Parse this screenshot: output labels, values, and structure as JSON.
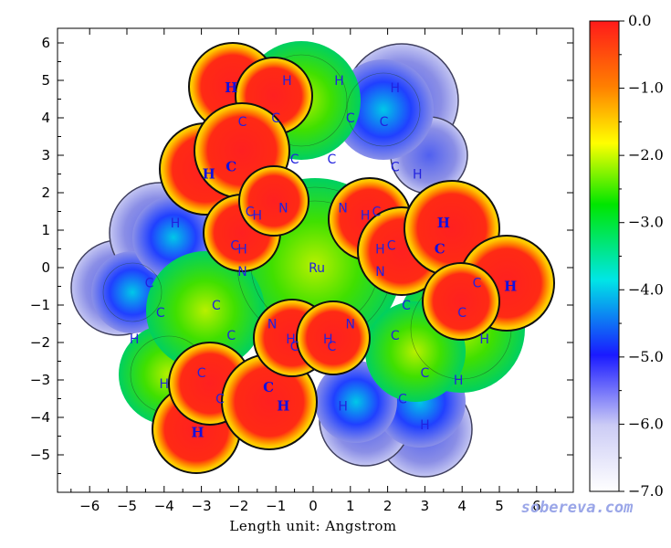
{
  "chart_data": {
    "type": "heatmap",
    "subtype": "molecular surface electrostatic potential map",
    "xlabel": "Length unit: Angstrom",
    "ylabel": "",
    "xlim": [
      -6.7,
      6.7
    ],
    "ylim": [
      -5.9,
      6.4
    ],
    "x_ticks": [
      -6,
      -5,
      -4,
      -3,
      -2,
      -1,
      0,
      1,
      2,
      3,
      4,
      5,
      6
    ],
    "y_ticks": [
      6,
      5,
      4,
      3,
      2,
      1,
      0,
      -1,
      -2,
      -3,
      -4,
      -5
    ],
    "x_tick_labels": [
      "−6",
      "−5",
      "−4",
      "−3",
      "−2",
      "−1",
      "0",
      "1",
      "2",
      "3",
      "4",
      "5",
      "6"
    ],
    "y_tick_labels": [
      "6",
      "5",
      "4",
      "3",
      "2",
      "1",
      "0",
      "−1",
      "−2",
      "−3",
      "−4",
      "−5"
    ],
    "colorbar": {
      "range": [
        -7.0,
        0.0
      ],
      "ticks": [
        0.0,
        -1.0,
        -2.0,
        -3.0,
        -4.0,
        -5.0,
        -6.0,
        -7.0
      ],
      "tick_labels": [
        "0.0",
        "−1.0",
        "−2.0",
        "−3.0",
        "−4.0",
        "−5.0",
        "−6.0",
        "−7.0"
      ],
      "colors_top_to_bottom": [
        "#ff1a1a",
        "#ff8000",
        "#ffff00",
        "#00e600",
        "#00e6e6",
        "#1a1aff",
        "#ccccf5",
        "#ffffff"
      ]
    },
    "grid": false,
    "atoms": [
      {
        "label": "Ru",
        "x": 0.1,
        "y": 0.0,
        "bold": false
      },
      {
        "label": "N",
        "x": -0.8,
        "y": 1.6,
        "bold": false
      },
      {
        "label": "N",
        "x": -1.9,
        "y": -0.1,
        "bold": false
      },
      {
        "label": "C",
        "x": -1.7,
        "y": 1.5,
        "bold": false
      },
      {
        "label": "H",
        "x": -1.5,
        "y": 1.4,
        "bold": false
      },
      {
        "label": "C",
        "x": -2.1,
        "y": 0.6,
        "bold": false
      },
      {
        "label": "H",
        "x": -1.9,
        "y": 0.5,
        "bold": false
      },
      {
        "label": "C",
        "x": -2.2,
        "y": 2.7,
        "bold": true
      },
      {
        "label": "H",
        "x": -2.8,
        "y": 2.5,
        "bold": true
      },
      {
        "label": "C",
        "x": -0.5,
        "y": 2.9,
        "bold": false
      },
      {
        "label": "C",
        "x": -1.9,
        "y": 3.9,
        "bold": false
      },
      {
        "label": "C",
        "x": -1.0,
        "y": 4.0,
        "bold": false
      },
      {
        "label": "H",
        "x": -2.2,
        "y": 4.8,
        "bold": true
      },
      {
        "label": "H",
        "x": -0.7,
        "y": 5.0,
        "bold": false
      },
      {
        "label": "C",
        "x": 0.5,
        "y": 2.9,
        "bold": false
      },
      {
        "label": "C",
        "x": 1.0,
        "y": 4.0,
        "bold": false
      },
      {
        "label": "C",
        "x": 1.9,
        "y": 3.9,
        "bold": false
      },
      {
        "label": "H",
        "x": 0.7,
        "y": 5.0,
        "bold": false
      },
      {
        "label": "H",
        "x": 2.2,
        "y": 4.8,
        "bold": false
      },
      {
        "label": "H",
        "x": 2.8,
        "y": 2.5,
        "bold": false
      },
      {
        "label": "C",
        "x": 2.2,
        "y": 2.7,
        "bold": false
      },
      {
        "label": "H",
        "x": -3.7,
        "y": 1.2,
        "bold": false
      },
      {
        "label": "N",
        "x": 0.8,
        "y": 1.6,
        "bold": false
      },
      {
        "label": "C",
        "x": 1.7,
        "y": 1.5,
        "bold": false
      },
      {
        "label": "H",
        "x": 1.4,
        "y": 1.4,
        "bold": false
      },
      {
        "label": "H",
        "x": 1.8,
        "y": 0.5,
        "bold": false
      },
      {
        "label": "C",
        "x": 2.1,
        "y": 0.6,
        "bold": false
      },
      {
        "label": "N",
        "x": 1.8,
        "y": -0.1,
        "bold": false
      },
      {
        "label": "H",
        "x": 3.5,
        "y": 1.2,
        "bold": true
      },
      {
        "label": "C",
        "x": 3.4,
        "y": 0.5,
        "bold": true
      },
      {
        "label": "C",
        "x": 4.4,
        "y": -0.4,
        "bold": false
      },
      {
        "label": "H",
        "x": 5.3,
        "y": -0.5,
        "bold": true
      },
      {
        "label": "C",
        "x": 4.0,
        "y": -1.2,
        "bold": false
      },
      {
        "label": "H",
        "x": 4.6,
        "y": -1.9,
        "bold": false
      },
      {
        "label": "C",
        "x": 2.5,
        "y": -1.0,
        "bold": false
      },
      {
        "label": "C",
        "x": 2.2,
        "y": -1.8,
        "bold": false
      },
      {
        "label": "C",
        "x": 3.0,
        "y": -2.8,
        "bold": false
      },
      {
        "label": "H",
        "x": 3.9,
        "y": -3.0,
        "bold": false
      },
      {
        "label": "C",
        "x": 2.4,
        "y": -3.5,
        "bold": false
      },
      {
        "label": "H",
        "x": 3.0,
        "y": -4.2,
        "bold": false
      },
      {
        "label": "H",
        "x": 0.8,
        "y": -3.7,
        "bold": false
      },
      {
        "label": "C",
        "x": -4.4,
        "y": -0.4,
        "bold": false
      },
      {
        "label": "C",
        "x": -4.1,
        "y": -1.2,
        "bold": false
      },
      {
        "label": "H",
        "x": -4.8,
        "y": -1.9,
        "bold": false
      },
      {
        "label": "C",
        "x": -2.6,
        "y": -1.0,
        "bold": false
      },
      {
        "label": "C",
        "x": -2.2,
        "y": -1.8,
        "bold": false
      },
      {
        "label": "N",
        "x": -1.1,
        "y": -1.5,
        "bold": false
      },
      {
        "label": "H",
        "x": -0.6,
        "y": -1.9,
        "bold": false
      },
      {
        "label": "C",
        "x": -0.5,
        "y": -2.1,
        "bold": false
      },
      {
        "label": "H",
        "x": 0.4,
        "y": -1.9,
        "bold": false
      },
      {
        "label": "C",
        "x": 0.5,
        "y": -2.1,
        "bold": false
      },
      {
        "label": "N",
        "x": 1.0,
        "y": -1.5,
        "bold": false
      },
      {
        "label": "C",
        "x": -3.0,
        "y": -2.8,
        "bold": false
      },
      {
        "label": "H",
        "x": -4.0,
        "y": -3.1,
        "bold": false
      },
      {
        "label": "C",
        "x": -2.5,
        "y": -3.5,
        "bold": false
      },
      {
        "label": "C",
        "x": -1.2,
        "y": -3.2,
        "bold": true
      },
      {
        "label": "H",
        "x": -0.8,
        "y": -3.7,
        "bold": true
      },
      {
        "label": "H",
        "x": -3.1,
        "y": -4.4,
        "bold": true
      }
    ],
    "watermark": "sobereva.com"
  }
}
